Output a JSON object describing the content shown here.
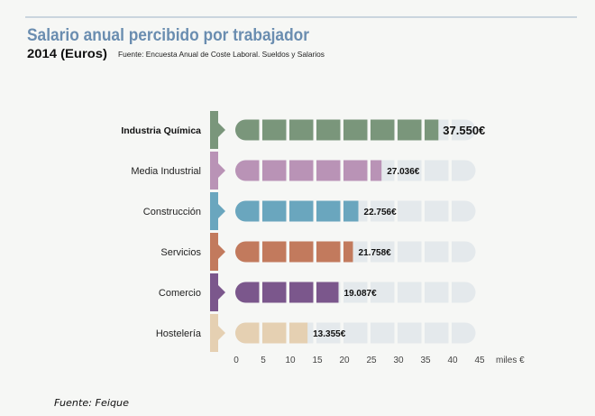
{
  "header": {
    "title": "Salario anual percibido por trabajador",
    "subtitle": "2014 (Euros)",
    "source_note": "Fuente: Encuesta Anual de Coste Laboral. Sueldos y Salarios"
  },
  "footer": {
    "source": "Fuente: Feique"
  },
  "colors": {
    "background": "#f6f7f5",
    "title": "#6a8db0",
    "rule": "#9fb3c6",
    "track": "#e4e9ec"
  },
  "chart_data": {
    "type": "bar",
    "orientation": "horizontal",
    "title": "Salario anual percibido por trabajador",
    "subtitle": "2014 (Euros)",
    "categories": [
      "Industria Química",
      "Media Industrial",
      "Construcción",
      "Servicios",
      "Comercio",
      "Hostelería"
    ],
    "values": [
      37.55,
      27.036,
      22.756,
      21.758,
      19.087,
      13.355
    ],
    "value_labels": [
      "37.550€",
      "27.036€",
      "22.756€",
      "21.758€",
      "19.087€",
      "13.355€"
    ],
    "series_colors": [
      "#7a967b",
      "#b993b6",
      "#6aa6be",
      "#c27a5d",
      "#7b578c",
      "#e5d0b2"
    ],
    "highlight": "Industria Química",
    "xlabel": "miles €",
    "ylabel": "",
    "xlim": [
      0,
      45
    ],
    "xticks": [
      0,
      5,
      10,
      15,
      20,
      25,
      30,
      35,
      40,
      45
    ],
    "xtick_labels": [
      "0",
      "5",
      "10",
      "15",
      "20",
      "25",
      "30",
      "35",
      "40",
      "45"
    ],
    "grid": false,
    "legend": null,
    "source": "Fuente: Feique"
  }
}
